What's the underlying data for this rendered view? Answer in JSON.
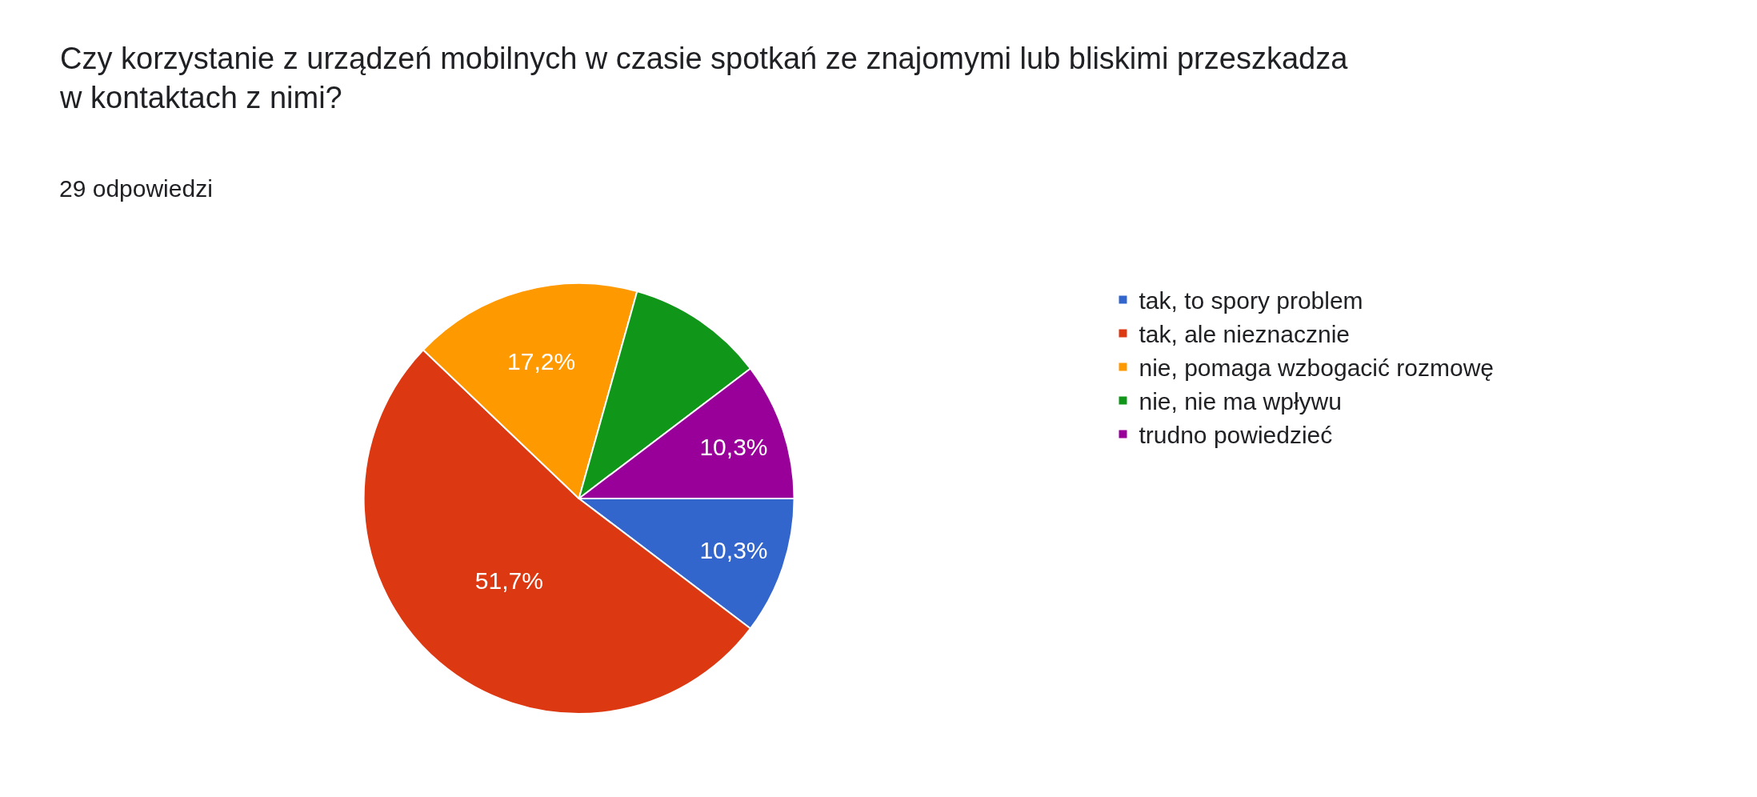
{
  "chart_data": {
    "type": "pie",
    "title": "Czy korzystanie z urządzeń mobilnych w czasie spotkań ze znajomymi lub bliskimi przeszkadza w kontaktach z nimi?",
    "subtitle": "29 odpowiedzi",
    "categories": [
      "tak, to spory problem",
      "tak, ale nieznacznie",
      "nie, pomaga wzbogacić rozmowę",
      "nie, nie ma wpływu",
      "trudno powiedzieć"
    ],
    "values": [
      10.3,
      51.7,
      17.2,
      10.3,
      10.3
    ],
    "value_labels": [
      "10,3%",
      "51,7%",
      "17,2%",
      null,
      "10,3%"
    ],
    "colors": [
      "#3366cc",
      "#dc3912",
      "#ff9900",
      "#109618",
      "#990099"
    ],
    "legend": "right"
  }
}
